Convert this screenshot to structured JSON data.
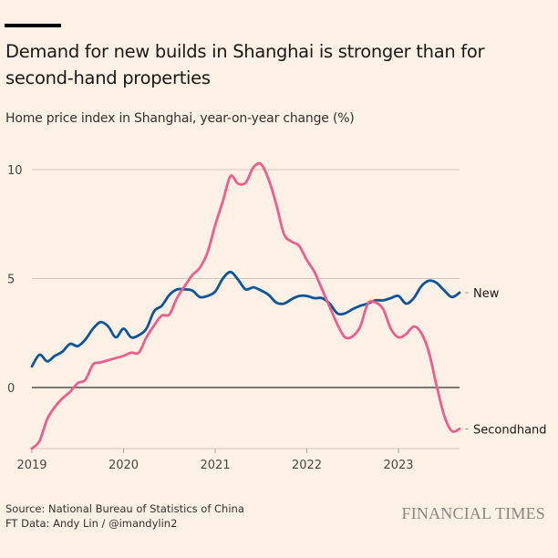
{
  "header": {
    "title": "Demand for new builds in Shanghai is stronger than for second-hand properties",
    "subtitle": "Home price index in Shanghai, year-on-year change (%)"
  },
  "footer": {
    "source": "Source: National Bureau of Statistics of China",
    "credit": "FT Data: Andy Lin / @imandylin2",
    "logo": "FINANCIAL TIMES"
  },
  "colors": {
    "background": "#fdf1e5",
    "new": "#0f5499",
    "secondhand": "#eb5e8d",
    "grid": "#cec6b9",
    "zero": "#33302e"
  },
  "chart_data": {
    "type": "line",
    "title": "Demand for new builds in Shanghai is stronger than for second-hand properties",
    "ylabel": "Home price index in Shanghai, year-on-year change (%)",
    "xlabel": "",
    "ylim": [
      -2.8,
      10.5
    ],
    "xlim": [
      "2019-01",
      "2023-09"
    ],
    "yticks": [
      0,
      5,
      10
    ],
    "ytick_labels": [
      "0",
      "5",
      "10"
    ],
    "xticks": [
      "2019",
      "2020",
      "2021",
      "2022",
      "2023"
    ],
    "grid": true,
    "legend": "direct labels at right end of lines",
    "x": [
      "2019-01",
      "2019-02",
      "2019-03",
      "2019-04",
      "2019-05",
      "2019-06",
      "2019-07",
      "2019-08",
      "2019-09",
      "2019-10",
      "2019-11",
      "2019-12",
      "2020-01",
      "2020-02",
      "2020-03",
      "2020-04",
      "2020-05",
      "2020-06",
      "2020-07",
      "2020-08",
      "2020-09",
      "2020-10",
      "2020-11",
      "2020-12",
      "2021-01",
      "2021-02",
      "2021-03",
      "2021-04",
      "2021-05",
      "2021-06",
      "2021-07",
      "2021-08",
      "2021-09",
      "2021-10",
      "2021-11",
      "2021-12",
      "2022-01",
      "2022-02",
      "2022-03",
      "2022-04",
      "2022-05",
      "2022-06",
      "2022-07",
      "2022-08",
      "2022-09",
      "2022-10",
      "2022-11",
      "2022-12",
      "2023-01",
      "2023-02",
      "2023-03",
      "2023-04",
      "2023-05",
      "2023-06",
      "2023-07",
      "2023-08",
      "2023-09"
    ],
    "series": [
      {
        "name": "New",
        "color": "#0f5499",
        "values": [
          0.97,
          1.5,
          1.2,
          1.45,
          1.65,
          2.0,
          1.9,
          2.2,
          2.7,
          3.0,
          2.8,
          2.3,
          2.7,
          2.3,
          2.4,
          2.7,
          3.5,
          3.75,
          4.25,
          4.5,
          4.5,
          4.45,
          4.15,
          4.2,
          4.4,
          5.0,
          5.3,
          4.95,
          4.5,
          4.6,
          4.45,
          4.25,
          3.9,
          3.85,
          4.05,
          4.2,
          4.2,
          4.1,
          4.1,
          3.85,
          3.4,
          3.4,
          3.6,
          3.75,
          3.85,
          4.0,
          4.0,
          4.1,
          4.2,
          3.85,
          4.1,
          4.65,
          4.9,
          4.8,
          4.45,
          4.15,
          4.35
        ]
      },
      {
        "name": "Secondhand",
        "color": "#eb5e8d",
        "values": [
          -2.8,
          -2.45,
          -1.45,
          -0.9,
          -0.5,
          -0.2,
          0.2,
          0.35,
          1.05,
          1.15,
          1.25,
          1.35,
          1.45,
          1.6,
          1.6,
          2.3,
          2.85,
          3.3,
          3.35,
          4.1,
          4.65,
          5.15,
          5.5,
          6.2,
          7.45,
          8.55,
          9.7,
          9.35,
          9.4,
          10.1,
          10.25,
          9.55,
          8.4,
          7.05,
          6.7,
          6.5,
          5.85,
          5.3,
          4.5,
          3.7,
          2.9,
          2.3,
          2.35,
          2.8,
          3.85,
          3.9,
          3.6,
          2.7,
          2.3,
          2.45,
          2.8,
          2.5,
          1.6,
          0.07,
          -1.3,
          -2.0,
          -1.9
        ]
      }
    ]
  }
}
